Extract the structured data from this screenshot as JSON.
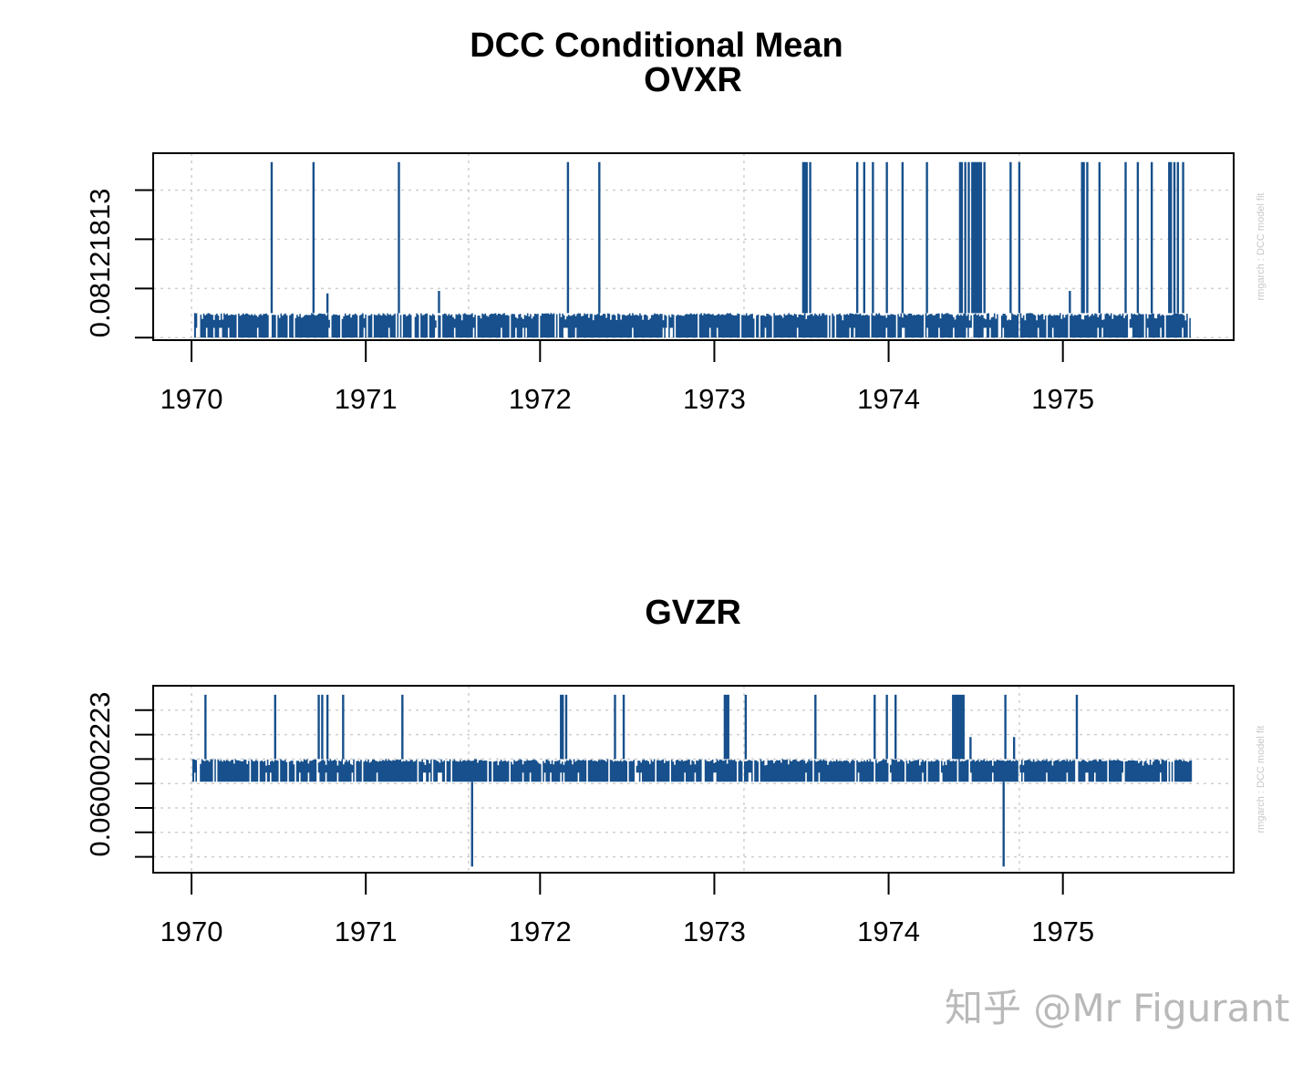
{
  "chart_data": {
    "type": "line",
    "title": "DCC Conditional Mean",
    "color": "#17508c",
    "side_note": "rmgarch  :  DCC model fit",
    "watermark": "知乎 @Mr Figurant",
    "panels": [
      {
        "subtitle": "OVXR",
        "ylabel": "0.08121813",
        "x_ticks": [
          "1970",
          "1971",
          "1972",
          "1973",
          "1974",
          "1975"
        ],
        "x_tick_values": [
          1970,
          1971,
          1972,
          1973,
          1974,
          1975
        ],
        "x_range": [
          1969.78,
          1975.98
        ],
        "y_ticks_levels": [
          0,
          1,
          2,
          3
        ],
        "y_range": [
          -0.05,
          3.75
        ],
        "grid_x": [
          1970,
          1971.59,
          1973.17,
          1974.75
        ],
        "data_start": 1970.02,
        "data_end": 1975.74,
        "band": [
          0,
          0.5
        ],
        "spikes": [
          {
            "x": 1970.46,
            "y": 3.57
          },
          {
            "x": 1970.7,
            "y": 3.57
          },
          {
            "x": 1970.78,
            "y": 0.9
          },
          {
            "x": 1971.19,
            "y": 3.57
          },
          {
            "x": 1971.42,
            "y": 0.95
          },
          {
            "x": 1972.16,
            "y": 3.57
          },
          {
            "x": 1972.34,
            "y": 3.57
          },
          {
            "x": 1973.51,
            "y": 3.57
          },
          {
            "x": 1973.52,
            "y": 3.57
          },
          {
            "x": 1973.53,
            "y": 3.57
          },
          {
            "x": 1973.55,
            "y": 3.57
          },
          {
            "x": 1973.82,
            "y": 3.57
          },
          {
            "x": 1973.86,
            "y": 3.57
          },
          {
            "x": 1973.91,
            "y": 3.57
          },
          {
            "x": 1973.99,
            "y": 3.57
          },
          {
            "x": 1974.08,
            "y": 3.57
          },
          {
            "x": 1974.22,
            "y": 3.57
          },
          {
            "x": 1974.41,
            "y": 3.57
          },
          {
            "x": 1974.42,
            "y": 3.57
          },
          {
            "x": 1974.44,
            "y": 3.57
          },
          {
            "x": 1974.46,
            "y": 3.57
          },
          {
            "x": 1974.48,
            "y": 3.57
          },
          {
            "x": 1974.49,
            "y": 3.57
          },
          {
            "x": 1974.5,
            "y": 3.57
          },
          {
            "x": 1974.51,
            "y": 3.57
          },
          {
            "x": 1974.52,
            "y": 3.57
          },
          {
            "x": 1974.53,
            "y": 3.57
          },
          {
            "x": 1974.55,
            "y": 3.57
          },
          {
            "x": 1974.7,
            "y": 3.57
          },
          {
            "x": 1974.75,
            "y": 3.57
          },
          {
            "x": 1975.04,
            "y": 0.95
          },
          {
            "x": 1975.11,
            "y": 3.57
          },
          {
            "x": 1975.12,
            "y": 3.57
          },
          {
            "x": 1975.14,
            "y": 3.57
          },
          {
            "x": 1975.21,
            "y": 3.57
          },
          {
            "x": 1975.36,
            "y": 3.57
          },
          {
            "x": 1975.43,
            "y": 3.57
          },
          {
            "x": 1975.51,
            "y": 3.57
          },
          {
            "x": 1975.61,
            "y": 3.57
          },
          {
            "x": 1975.62,
            "y": 3.57
          },
          {
            "x": 1975.64,
            "y": 3.57
          },
          {
            "x": 1975.66,
            "y": 3.57
          },
          {
            "x": 1975.69,
            "y": 3.57
          }
        ]
      },
      {
        "subtitle": "GVZR",
        "ylabel": "0.060002223",
        "x_ticks": [
          "1970",
          "1971",
          "1972",
          "1973",
          "1974",
          "1975"
        ],
        "x_tick_values": [
          1970,
          1971,
          1972,
          1973,
          1974,
          1975
        ],
        "x_range": [
          1969.78,
          1975.98
        ],
        "y_ticks_levels": [
          0,
          1,
          2,
          3,
          4,
          5,
          6
        ],
        "y_range": [
          -0.65,
          7.0
        ],
        "grid_x": [
          1970,
          1971.59,
          1973.17,
          1974.75
        ],
        "data_start": 1970.01,
        "data_end": 1975.74,
        "band": [
          3.07,
          4.0
        ],
        "spikes": [
          {
            "x": 1970.08,
            "y": 6.63
          },
          {
            "x": 1970.48,
            "y": 6.63
          },
          {
            "x": 1970.73,
            "y": 6.63
          },
          {
            "x": 1970.75,
            "y": 6.63
          },
          {
            "x": 1970.78,
            "y": 6.63
          },
          {
            "x": 1970.87,
            "y": 6.63
          },
          {
            "x": 1971.21,
            "y": 6.63
          },
          {
            "x": 1971.61,
            "y": -0.4
          },
          {
            "x": 1972.12,
            "y": 6.63
          },
          {
            "x": 1972.13,
            "y": 6.63
          },
          {
            "x": 1972.15,
            "y": 6.63
          },
          {
            "x": 1972.43,
            "y": 6.63
          },
          {
            "x": 1972.48,
            "y": 6.63
          },
          {
            "x": 1973.06,
            "y": 6.63
          },
          {
            "x": 1973.07,
            "y": 6.63
          },
          {
            "x": 1973.08,
            "y": 6.63
          },
          {
            "x": 1973.18,
            "y": 6.63
          },
          {
            "x": 1973.58,
            "y": 6.63
          },
          {
            "x": 1973.92,
            "y": 6.63
          },
          {
            "x": 1973.99,
            "y": 6.63
          },
          {
            "x": 1974.04,
            "y": 6.63
          },
          {
            "x": 1974.37,
            "y": 6.63
          },
          {
            "x": 1974.38,
            "y": 6.63
          },
          {
            "x": 1974.39,
            "y": 6.63
          },
          {
            "x": 1974.4,
            "y": 6.63
          },
          {
            "x": 1974.41,
            "y": 6.63
          },
          {
            "x": 1974.42,
            "y": 6.63
          },
          {
            "x": 1974.43,
            "y": 6.63
          },
          {
            "x": 1974.47,
            "y": 4.9
          },
          {
            "x": 1974.66,
            "y": -0.4
          },
          {
            "x": 1974.67,
            "y": 6.63
          },
          {
            "x": 1974.72,
            "y": 4.9
          },
          {
            "x": 1975.08,
            "y": 6.63
          }
        ]
      }
    ]
  }
}
